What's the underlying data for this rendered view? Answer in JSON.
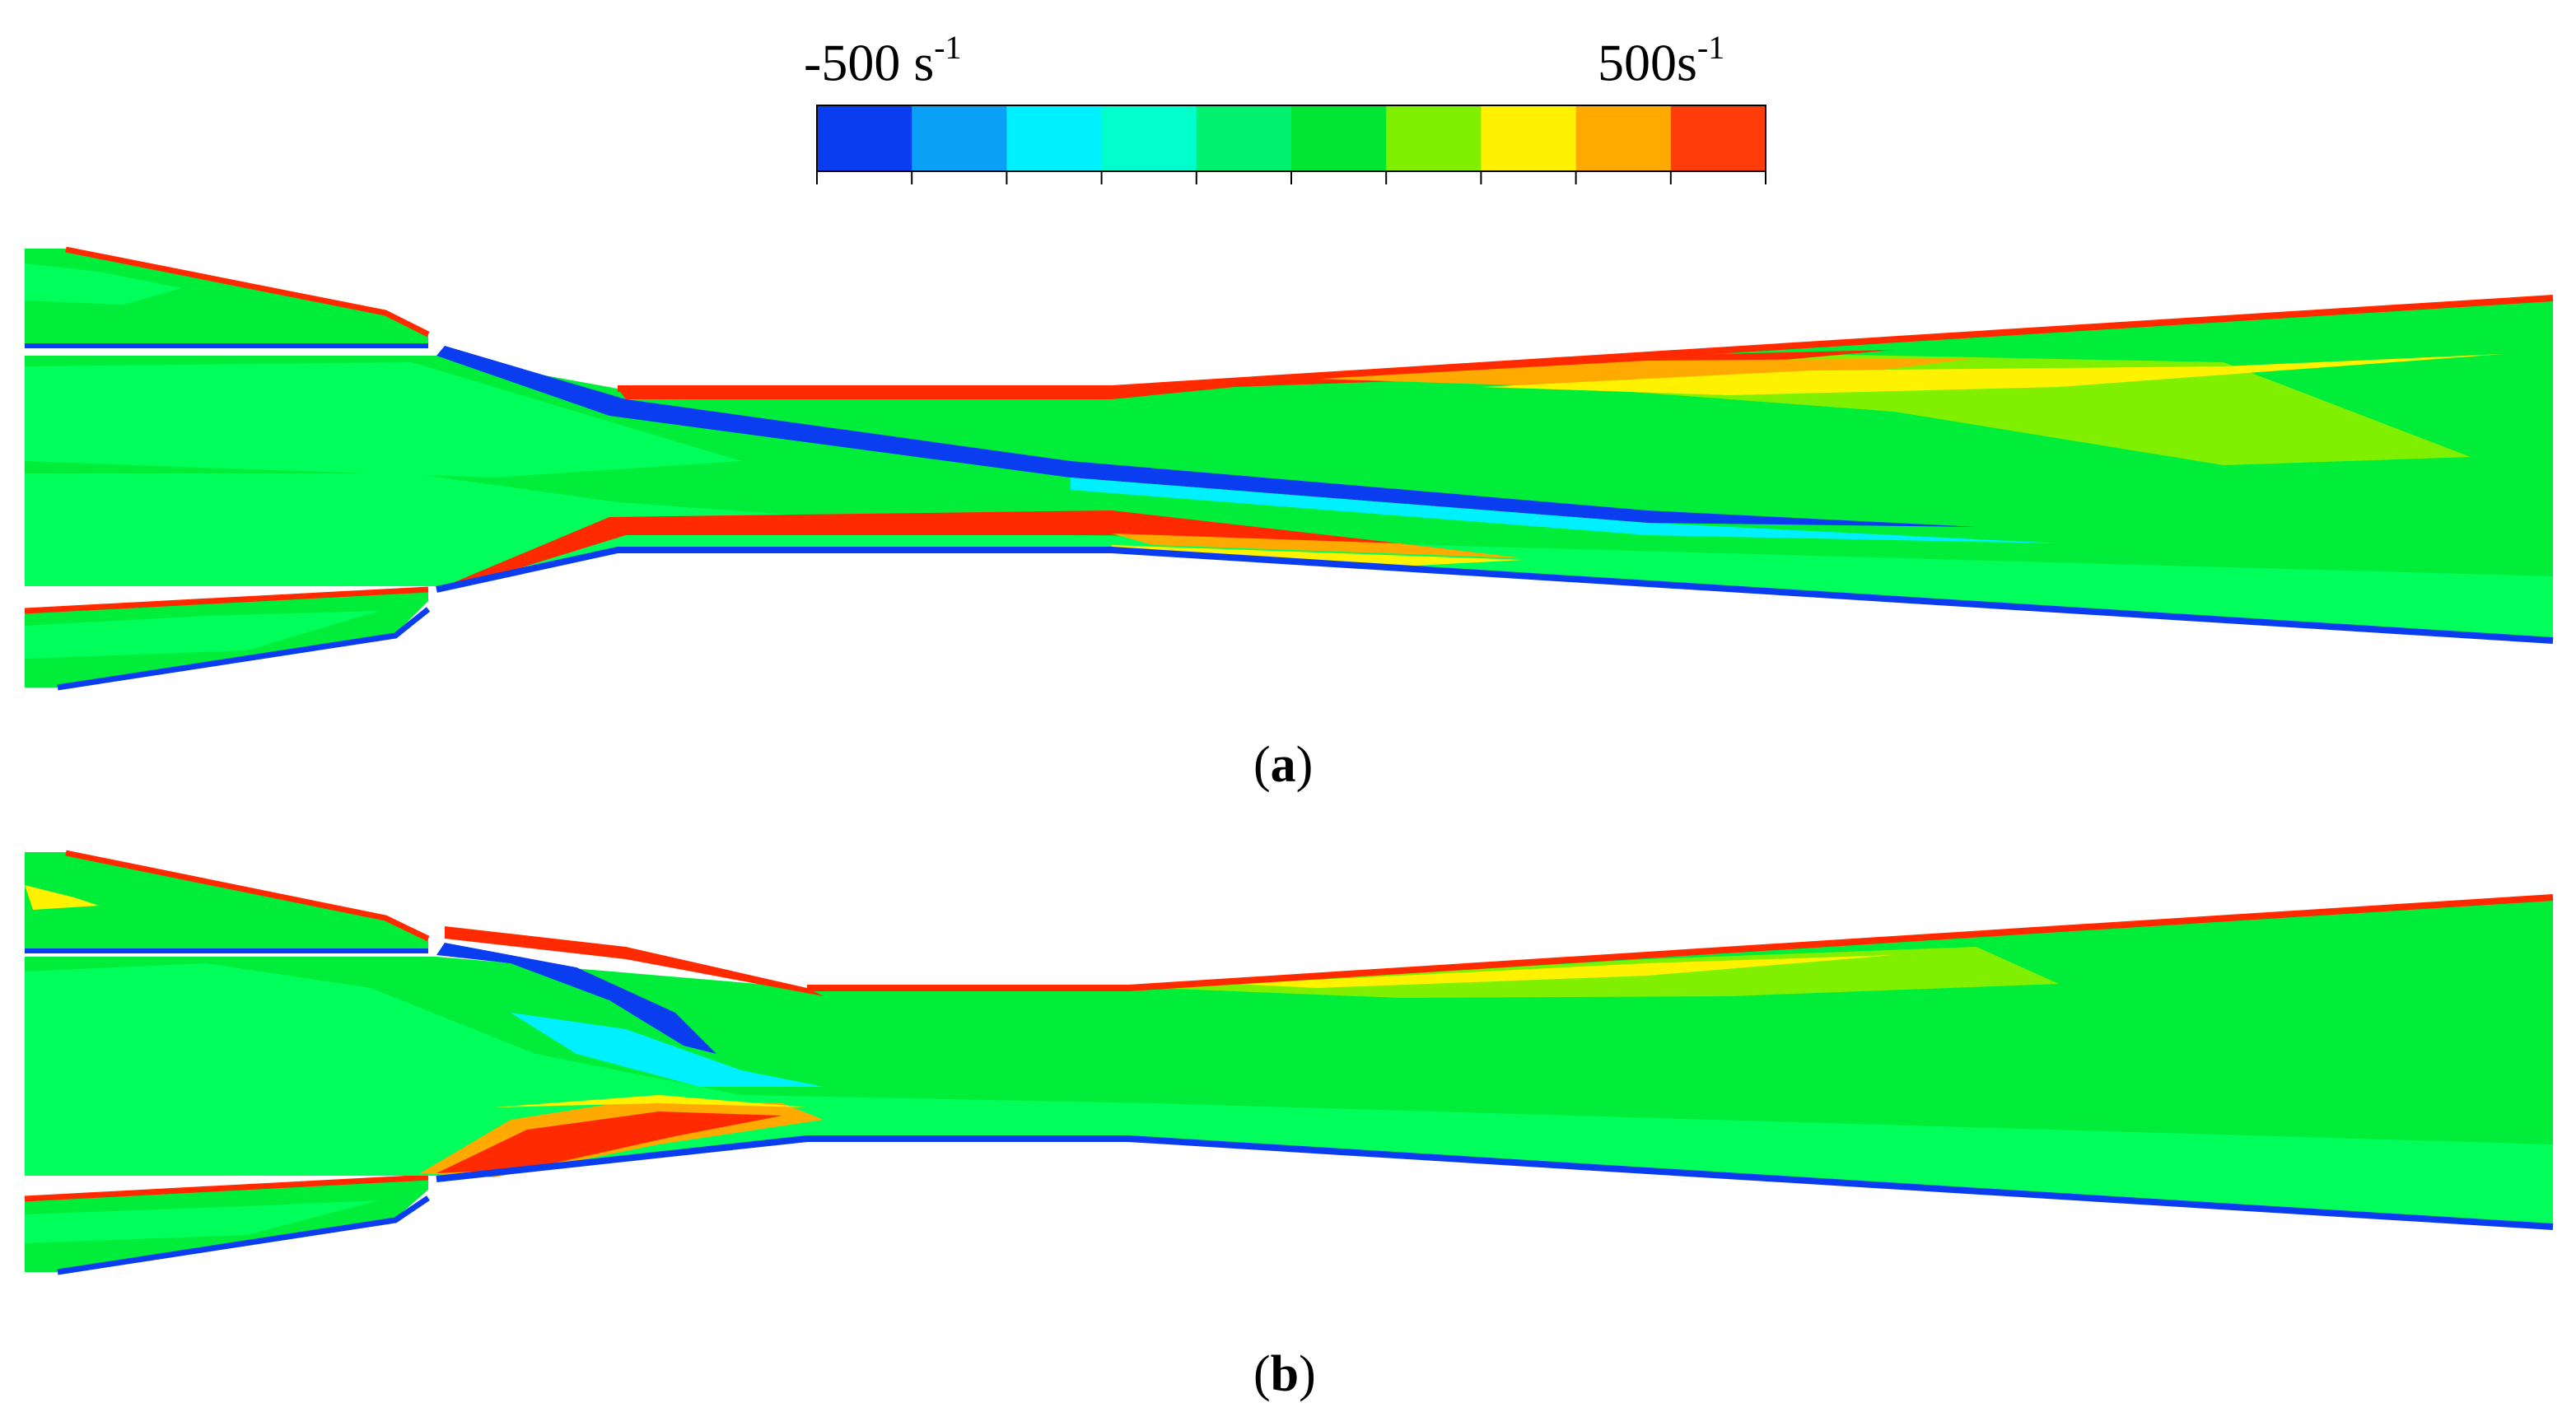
{
  "colorbar": {
    "min_label": "-500 s",
    "max_label": "500s",
    "exponent": "-1",
    "min_value": -500,
    "max_value": 500,
    "unit": "s^-1",
    "colors": [
      "#0a3cf0",
      "#0aa0f5",
      "#00f0ff",
      "#00ffcc",
      "#00f070",
      "#00e632",
      "#80f000",
      "#fff200",
      "#ffaa00",
      "#ff3c0a"
    ]
  },
  "panels": [
    {
      "id": "a",
      "caption_open": "(",
      "caption_letter": "a",
      "caption_close": ")"
    },
    {
      "id": "b",
      "caption_open": "(",
      "caption_letter": "b",
      "caption_close": ")"
    }
  ],
  "palette": {
    "background_field": "#00ee3a",
    "core_field": "#00ff5a",
    "negative_strong": "#0a3cf0",
    "negative_mid": "#00f0ff",
    "positive_mid": "#fff200",
    "positive_high": "#ffaa00",
    "positive_strong": "#ff2a00",
    "light_green": "#80f000"
  }
}
